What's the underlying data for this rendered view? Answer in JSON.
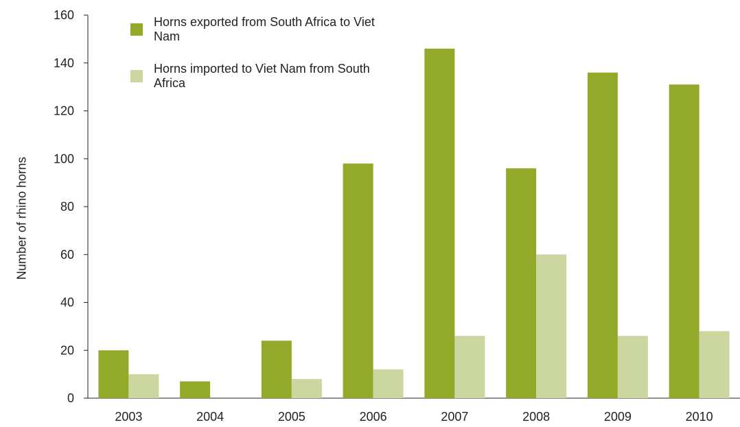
{
  "chart_data": {
    "type": "bar",
    "title": "",
    "xlabel": "",
    "ylabel": "Number of rhino horns",
    "categories": [
      "2003",
      "2004",
      "2005",
      "2006",
      "2007",
      "2008",
      "2009",
      "2010"
    ],
    "series": [
      {
        "name": "Horns exported from South Africa to Viet Nam",
        "color": "#93a92a",
        "values": [
          20,
          7,
          24,
          98,
          146,
          96,
          136,
          131
        ]
      },
      {
        "name": "Horns imported to Viet Nam from South Africa",
        "color": "#ccd6a0",
        "values": [
          10,
          0,
          8,
          12,
          26,
          60,
          26,
          28
        ]
      }
    ],
    "ylim": [
      0,
      160
    ],
    "yticks": [
      0,
      20,
      40,
      60,
      80,
      100,
      120,
      140,
      160
    ],
    "grid": false,
    "legend_position": "top-left"
  },
  "legend": {
    "item1": "Horns exported from South Africa to Viet Nam",
    "item2": "Horns imported to Viet Nam from South Africa"
  }
}
